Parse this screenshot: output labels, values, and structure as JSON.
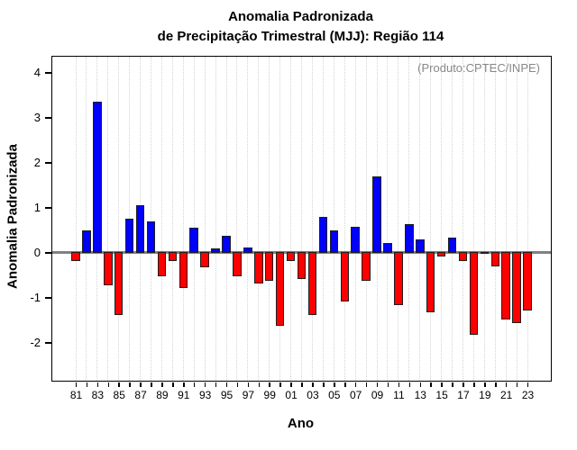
{
  "title": {
    "line1": "Anomalia Padronizada",
    "line2": "de Precipitação Trimestral (MJJ): Região 114"
  },
  "annotation": "(Produto:CPTEC/INPE)",
  "x_axis_label": "Ano",
  "y_axis_label": "Anomalia Padronizada",
  "colors": {
    "positive_bar": "#0000FF",
    "negative_bar": "#FF0000",
    "bar_border": "#1F1F1F",
    "zero_line": "#808080",
    "grid_line": "#D4D4D4",
    "annotation_text": "#888888",
    "frame": "#000000"
  },
  "chart_data": {
    "type": "bar",
    "title": "Anomalia Padronizada de Precipitação Trimestral (MJJ): Região 114",
    "xlabel": "Ano",
    "ylabel": "Anomalia Padronizada",
    "ylim": [
      -2.85,
      4.35
    ],
    "y_ticks": [
      4,
      3,
      2,
      1,
      0,
      -1,
      -2
    ],
    "grid": "vertical-dotted",
    "legend": "none",
    "x_label_every": 2,
    "categories": [
      "81",
      "82",
      "83",
      "84",
      "85",
      "86",
      "87",
      "88",
      "89",
      "90",
      "91",
      "92",
      "93",
      "94",
      "95",
      "96",
      "97",
      "98",
      "99",
      "00",
      "01",
      "02",
      "03",
      "04",
      "05",
      "06",
      "07",
      "08",
      "09",
      "10",
      "11",
      "12",
      "13",
      "14",
      "15",
      "16",
      "17",
      "18",
      "19",
      "20",
      "21",
      "22",
      "23"
    ],
    "values": [
      -0.2,
      0.5,
      3.35,
      -0.75,
      -1.4,
      0.75,
      1.05,
      0.7,
      -0.55,
      -0.2,
      -0.8,
      0.55,
      -0.35,
      0.1,
      0.38,
      -0.55,
      0.12,
      -0.7,
      -0.65,
      -1.65,
      -0.2,
      -0.6,
      -1.4,
      0.8,
      0.5,
      -1.1,
      0.57,
      -0.65,
      1.7,
      0.22,
      -1.18,
      0.64,
      0.3,
      -1.35,
      -0.11,
      0.34,
      -0.2,
      -1.85,
      -0.03,
      -0.33,
      -1.5,
      -1.58,
      -1.3
    ]
  }
}
